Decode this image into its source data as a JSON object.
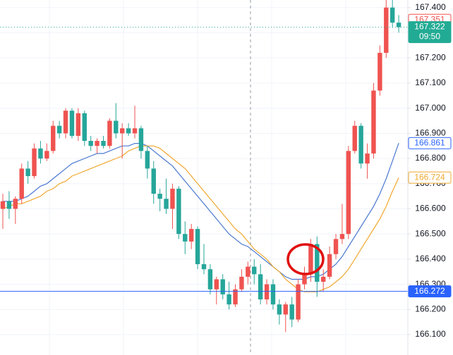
{
  "chart_data": {
    "type": "candlestick",
    "up_color": "#ef5350",
    "down_color": "#26a69a",
    "grid": true,
    "ylim": [
      166.019,
      167.43
    ],
    "yticks": [
      {
        "value": 166.1,
        "label": "166.100"
      },
      {
        "value": 166.2,
        "label": "166.200"
      },
      {
        "value": 166.3,
        "label": "166.300"
      },
      {
        "value": 166.4,
        "label": "166.400"
      },
      {
        "value": 166.5,
        "label": "166.500"
      },
      {
        "value": 166.6,
        "label": "166.600"
      },
      {
        "value": 166.7,
        "label": "166.700"
      },
      {
        "value": 166.8,
        "label": "166.800"
      },
      {
        "value": 166.9,
        "label": "166.900"
      },
      {
        "value": 167.0,
        "label": "167.000"
      },
      {
        "value": 167.1,
        "label": "167.100"
      },
      {
        "value": 167.2,
        "label": "167.200"
      },
      {
        "value": 167.3,
        "label": "167.300"
      },
      {
        "value": 167.4,
        "label": "167.400"
      }
    ],
    "open": [
      166.6,
      166.63,
      166.6,
      166.64,
      166.76,
      166.73,
      166.84,
      166.8,
      166.83,
      166.93,
      166.9,
      166.99,
      166.89,
      166.98,
      166.87,
      166.85,
      166.87,
      166.85,
      166.95,
      166.9,
      166.92,
      166.9,
      166.92,
      166.83,
      166.76,
      166.66,
      166.64,
      166.6,
      166.68,
      166.5,
      166.47,
      166.52,
      166.38,
      166.36,
      166.28,
      166.32,
      166.26,
      166.22,
      166.28,
      166.33,
      166.37,
      166.34,
      166.24,
      166.3,
      166.22,
      166.18,
      166.22,
      166.16,
      166.3,
      166.34,
      166.46,
      166.31,
      166.33,
      166.42,
      166.48,
      166.5,
      166.83,
      166.93,
      166.78,
      166.82,
      167.07,
      167.22,
      167.4,
      167.34
    ],
    "high": [
      166.66,
      166.67,
      166.65,
      166.78,
      166.79,
      166.86,
      166.87,
      166.86,
      166.95,
      166.95,
      167.0,
      167.0,
      167.0,
      166.99,
      166.89,
      166.88,
      166.89,
      166.96,
      167.02,
      166.94,
      166.94,
      167.01,
      166.93,
      166.85,
      166.79,
      166.68,
      166.72,
      166.7,
      166.69,
      166.55,
      166.54,
      166.53,
      166.46,
      166.38,
      166.33,
      166.34,
      166.31,
      166.3,
      166.36,
      166.39,
      166.4,
      166.38,
      166.32,
      166.32,
      166.24,
      166.23,
      166.25,
      166.32,
      166.37,
      166.48,
      166.49,
      166.36,
      166.45,
      166.5,
      166.62,
      166.85,
      166.95,
      166.94,
      166.86,
      167.1,
      167.25,
      167.43,
      167.43,
      167.37
    ],
    "low": [
      166.52,
      166.56,
      166.54,
      166.62,
      166.7,
      166.72,
      166.78,
      166.79,
      166.82,
      166.88,
      166.88,
      166.88,
      166.87,
      166.85,
      166.83,
      166.82,
      166.84,
      166.84,
      166.88,
      166.8,
      166.89,
      166.88,
      166.8,
      166.72,
      166.62,
      166.59,
      166.58,
      166.52,
      166.48,
      166.42,
      166.44,
      166.36,
      166.34,
      166.26,
      166.22,
      166.24,
      166.2,
      166.21,
      166.27,
      166.3,
      166.3,
      166.22,
      166.22,
      166.2,
      166.14,
      166.11,
      166.13,
      166.15,
      166.28,
      166.31,
      166.25,
      166.27,
      166.32,
      166.4,
      166.46,
      166.48,
      166.82,
      166.76,
      166.72,
      166.8,
      167.05,
      167.2,
      167.32,
      167.3
    ],
    "close": [
      166.63,
      166.6,
      166.64,
      166.76,
      166.73,
      166.84,
      166.8,
      166.83,
      166.93,
      166.9,
      166.99,
      166.89,
      166.98,
      166.87,
      166.85,
      166.87,
      166.85,
      166.95,
      166.9,
      166.92,
      166.9,
      166.92,
      166.83,
      166.76,
      166.66,
      166.64,
      166.6,
      166.68,
      166.5,
      166.47,
      166.52,
      166.38,
      166.36,
      166.28,
      166.32,
      166.26,
      166.22,
      166.28,
      166.33,
      166.37,
      166.34,
      166.24,
      166.3,
      166.22,
      166.18,
      166.22,
      166.16,
      166.3,
      166.34,
      166.46,
      166.31,
      166.33,
      166.42,
      166.48,
      166.5,
      166.83,
      166.93,
      166.78,
      166.82,
      167.07,
      167.22,
      167.4,
      167.34,
      167.322
    ],
    "overlays": [
      {
        "color": "#4a78d0",
        "values": [
          166.63,
          166.63,
          166.63,
          166.64,
          166.65,
          166.67,
          166.69,
          166.7,
          166.72,
          166.74,
          166.76,
          166.78,
          166.79,
          166.8,
          166.81,
          166.82,
          166.82,
          166.83,
          166.84,
          166.85,
          166.85,
          166.86,
          166.86,
          166.85,
          166.83,
          166.81,
          166.79,
          166.77,
          166.74,
          166.71,
          166.68,
          166.65,
          166.62,
          166.59,
          166.56,
          166.53,
          166.5,
          166.48,
          166.46,
          166.45,
          166.43,
          166.41,
          166.39,
          166.37,
          166.35,
          166.33,
          166.32,
          166.32,
          166.32,
          166.33,
          166.33,
          166.34,
          166.36,
          166.38,
          166.41,
          166.45,
          166.49,
          166.53,
          166.57,
          166.61,
          166.66,
          166.72,
          166.79,
          166.861
        ]
      },
      {
        "color": "#f0a830",
        "values": [
          166.6,
          166.61,
          166.62,
          166.62,
          166.63,
          166.64,
          166.65,
          166.67,
          166.68,
          166.7,
          166.71,
          166.73,
          166.74,
          166.75,
          166.76,
          166.77,
          166.78,
          166.79,
          166.8,
          166.81,
          166.83,
          166.84,
          166.85,
          166.85,
          166.85,
          166.84,
          166.82,
          166.8,
          166.78,
          166.76,
          166.73,
          166.7,
          166.67,
          166.64,
          166.61,
          166.58,
          166.55,
          166.52,
          166.5,
          166.47,
          166.44,
          166.42,
          166.4,
          166.37,
          166.35,
          166.32,
          166.3,
          166.28,
          166.27,
          166.27,
          166.27,
          166.28,
          166.29,
          166.31,
          166.33,
          166.36,
          166.4,
          166.44,
          166.48,
          166.52,
          166.56,
          166.61,
          166.67,
          166.724
        ]
      }
    ],
    "price_labels": [
      {
        "value": 167.351,
        "label": "167.351",
        "color": "#ef5350",
        "filled": false
      },
      {
        "value": 167.322,
        "label": "167.322",
        "sub": "09:50",
        "color": "#22ab94",
        "filled": true,
        "line": "dotted"
      },
      {
        "value": 166.861,
        "label": "166.861",
        "color": "#2962ff",
        "filled": false
      },
      {
        "value": 166.724,
        "label": "166.724",
        "color": "#f0a830",
        "filled": false
      },
      {
        "value": 166.272,
        "label": "166.272",
        "color": "#2962ff",
        "filled": true,
        "line": "solid"
      }
    ]
  }
}
